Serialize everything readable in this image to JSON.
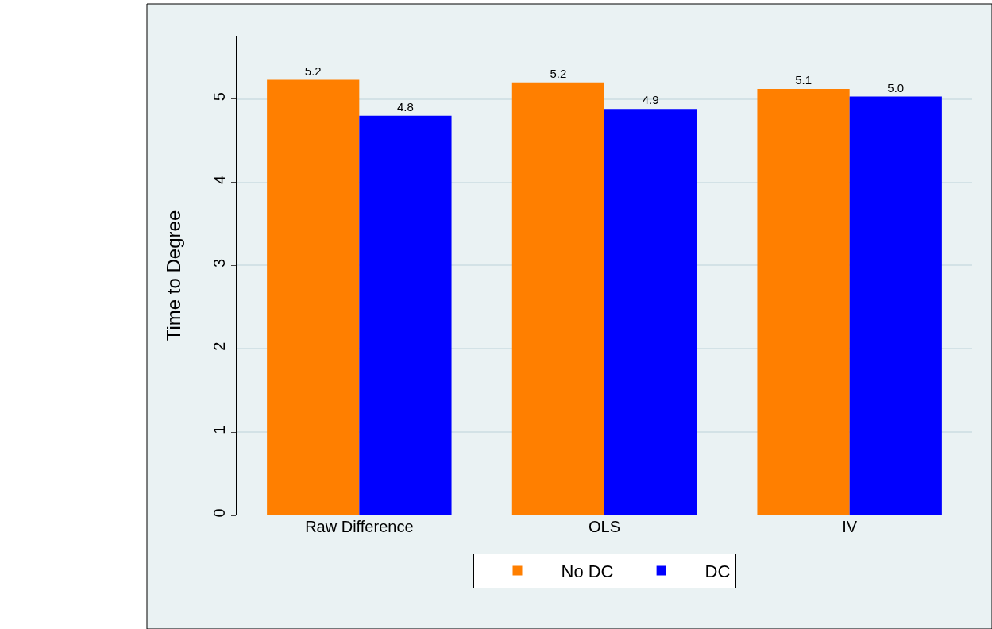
{
  "chart_data": {
    "type": "bar",
    "ylabel": "Time to Degree",
    "categories": [
      "Raw Difference",
      "OLS",
      "IV"
    ],
    "series": [
      {
        "name": "No DC",
        "color": "#ff7f00",
        "values": [
          5.23,
          5.2,
          5.12
        ],
        "value_labels": [
          "5.2",
          "5.2",
          "5.1"
        ]
      },
      {
        "name": "DC",
        "color": "#0000ff",
        "values": [
          4.8,
          4.88,
          5.03
        ],
        "value_labels": [
          "4.8",
          "4.9",
          "5.0"
        ]
      }
    ],
    "ylim": [
      0,
      5.76
    ],
    "yticks": [
      0,
      1,
      2,
      3,
      4,
      5
    ],
    "grid": "y",
    "legend": "bottom"
  }
}
